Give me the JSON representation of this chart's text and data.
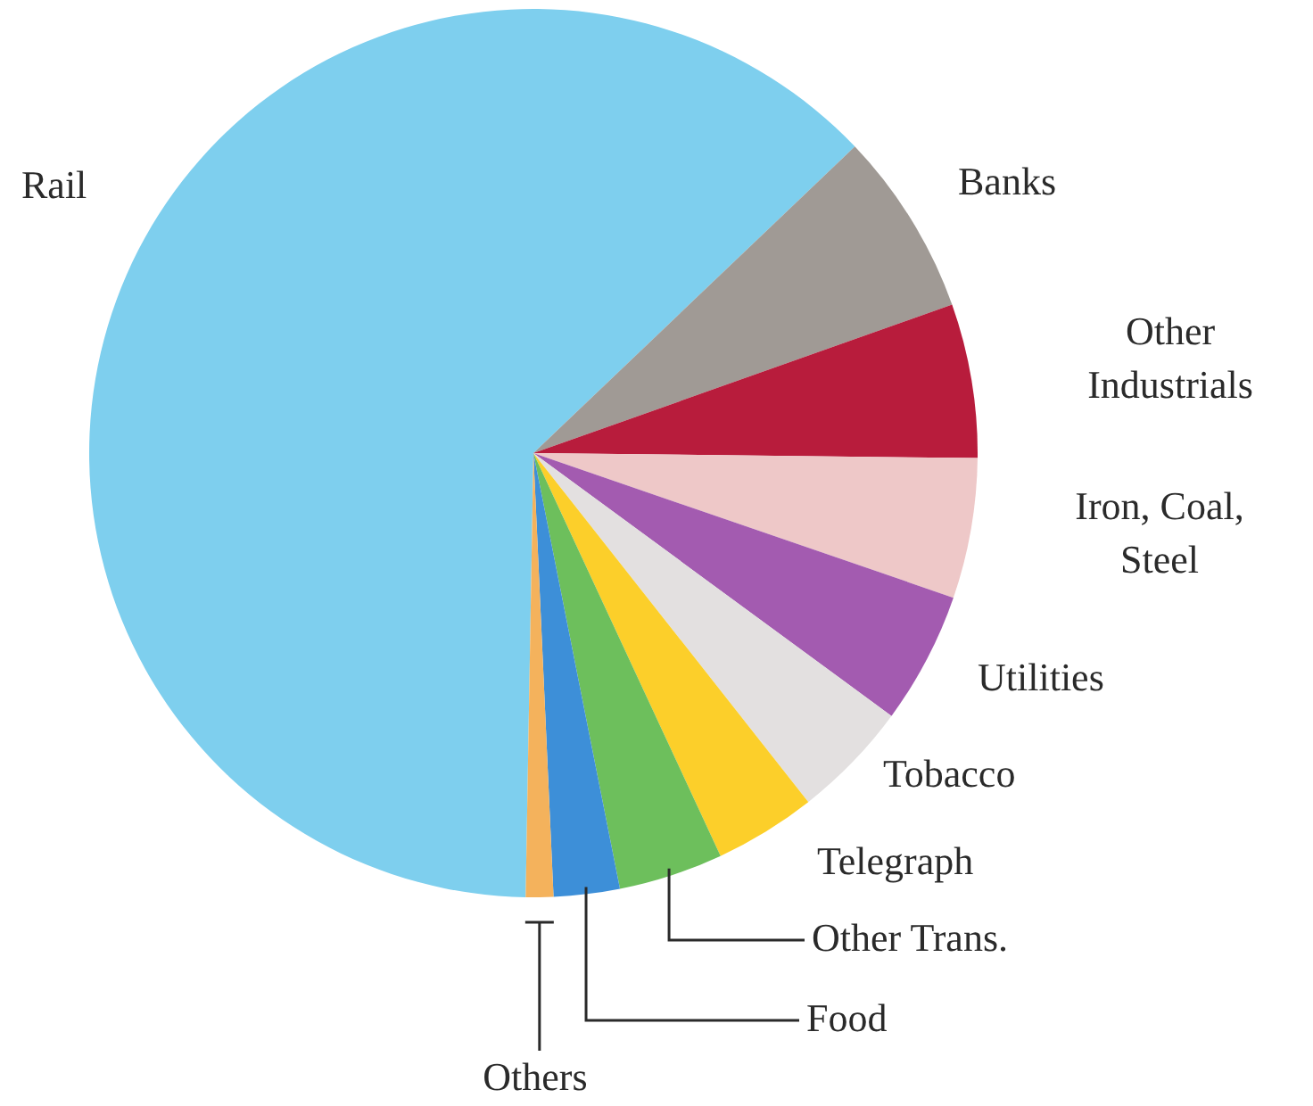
{
  "chart_data": {
    "type": "pie",
    "categories": [
      "Rail",
      "Banks",
      "Other Industrials",
      "Iron, Coal, Steel",
      "Utilities",
      "Tobacco",
      "Telegraph",
      "Other Trans.",
      "Food",
      "Others"
    ],
    "values": [
      62.6,
      6.7,
      5.6,
      5.1,
      4.8,
      4.3,
      3.7,
      3.8,
      2.4,
      1.0
    ],
    "colors": [
      "#7ecfee",
      "#a09a95",
      "#b81c3c",
      "#eec8c8",
      "#a35bb0",
      "#e3e0e0",
      "#fccf2a",
      "#6dbf5c",
      "#3d8fd8",
      "#f4b25c"
    ],
    "legend": false
  }
}
